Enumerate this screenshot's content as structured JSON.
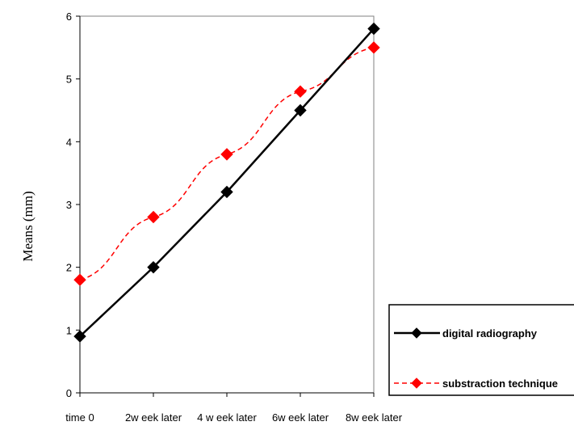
{
  "chart_data": {
    "type": "line",
    "categories": [
      "time 0",
      "2w eek later",
      "4 w eek later",
      "6w eek later",
      "8w eek later"
    ],
    "series": [
      {
        "name": "digital radiography",
        "values": [
          0.9,
          2.0,
          3.2,
          4.5,
          5.8
        ],
        "color": "#000000",
        "style": "solid",
        "marker": "diamond"
      },
      {
        "name": "substraction technique",
        "values": [
          1.8,
          2.8,
          3.8,
          4.8,
          5.5
        ],
        "color": "#ff0000",
        "style": "dashed",
        "marker": "diamond"
      }
    ],
    "xlabel": "",
    "ylabel": "Means (mm)",
    "ylim": [
      0,
      6
    ],
    "yticks": [
      0,
      1,
      2,
      3,
      4,
      5,
      6
    ],
    "grid": false,
    "legend_position": "bottom-right"
  }
}
